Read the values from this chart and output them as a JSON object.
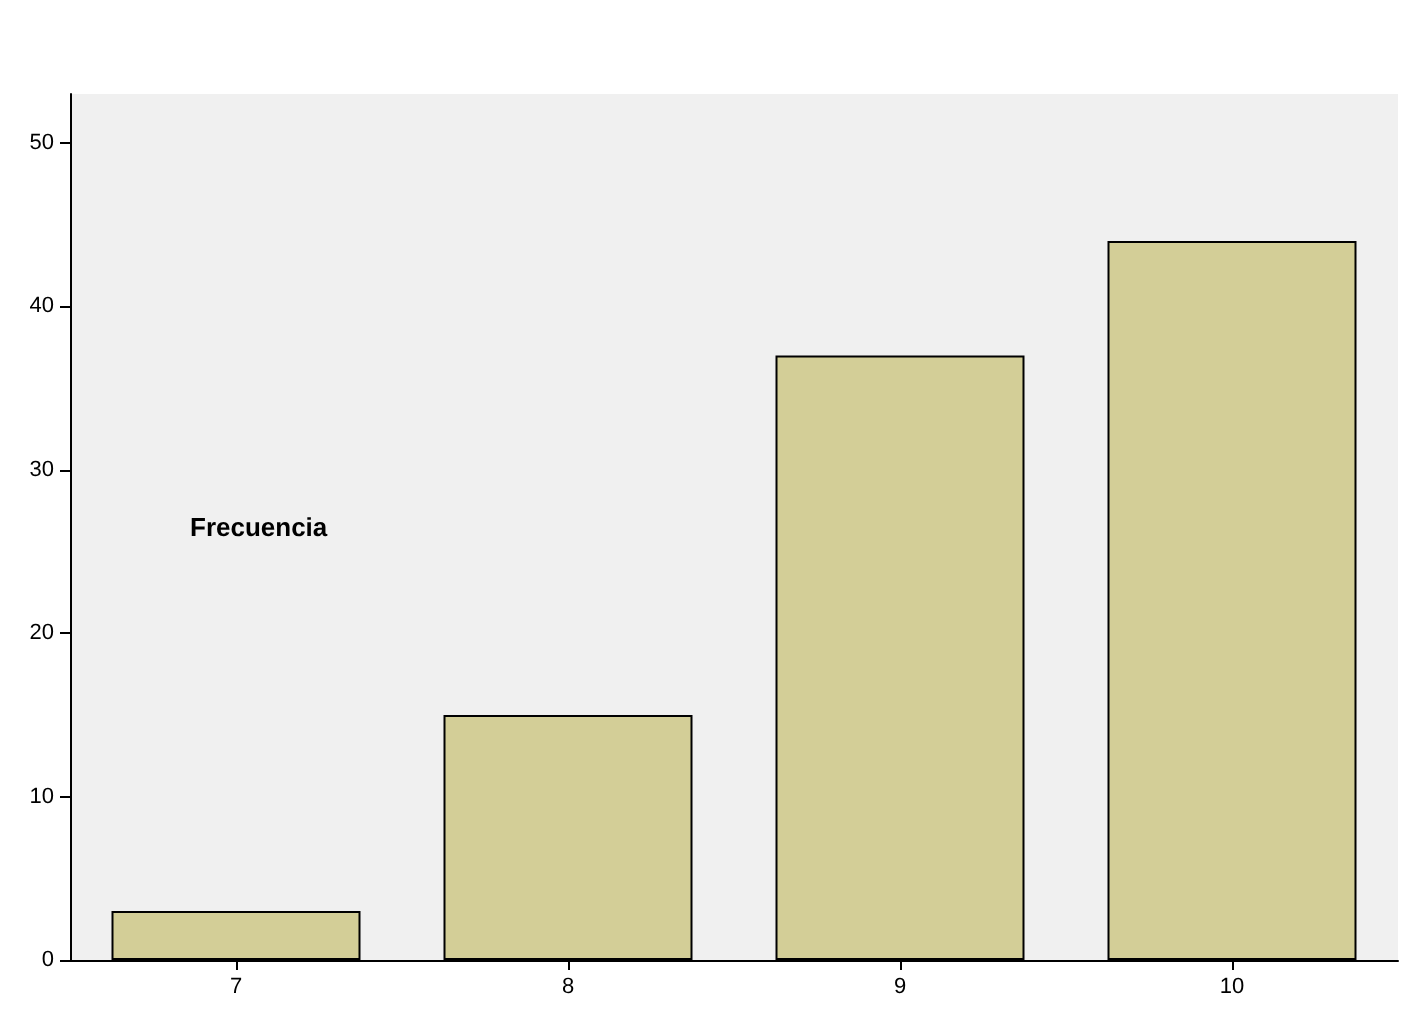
{
  "chart_data": {
    "type": "bar",
    "ylabel": "Frecuencia",
    "categories": [
      "7",
      "8",
      "9",
      "10"
    ],
    "values": [
      3,
      15,
      37,
      44
    ],
    "color": "#d3ce97",
    "ylim": [
      0,
      53
    ],
    "yticks": [
      0,
      10,
      20,
      30,
      40,
      50
    ],
    "grid": false
  }
}
